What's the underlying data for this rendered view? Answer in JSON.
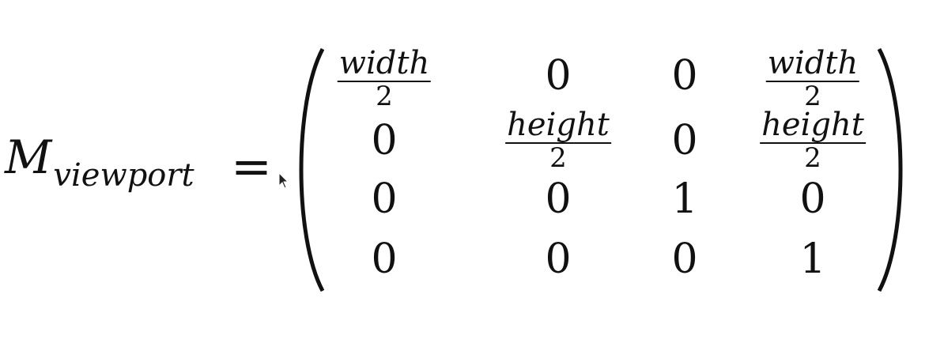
{
  "equation": {
    "symbol": "M",
    "subscript": "viewport",
    "equals": "=",
    "matrix": {
      "row1": {
        "c1_num": "width",
        "c1_den": "2",
        "c2": "0",
        "c3": "0",
        "c4_num": "width",
        "c4_den": "2"
      },
      "row2": {
        "c1": "0",
        "c2_num": "height",
        "c2_den": "2",
        "c3": "0",
        "c4_num": "height",
        "c4_den": "2"
      },
      "row3": {
        "c1": "0",
        "c2": "0",
        "c3": "1",
        "c4": "0"
      },
      "row4": {
        "c1": "0",
        "c2": "0",
        "c3": "0",
        "c4": "1"
      }
    }
  }
}
